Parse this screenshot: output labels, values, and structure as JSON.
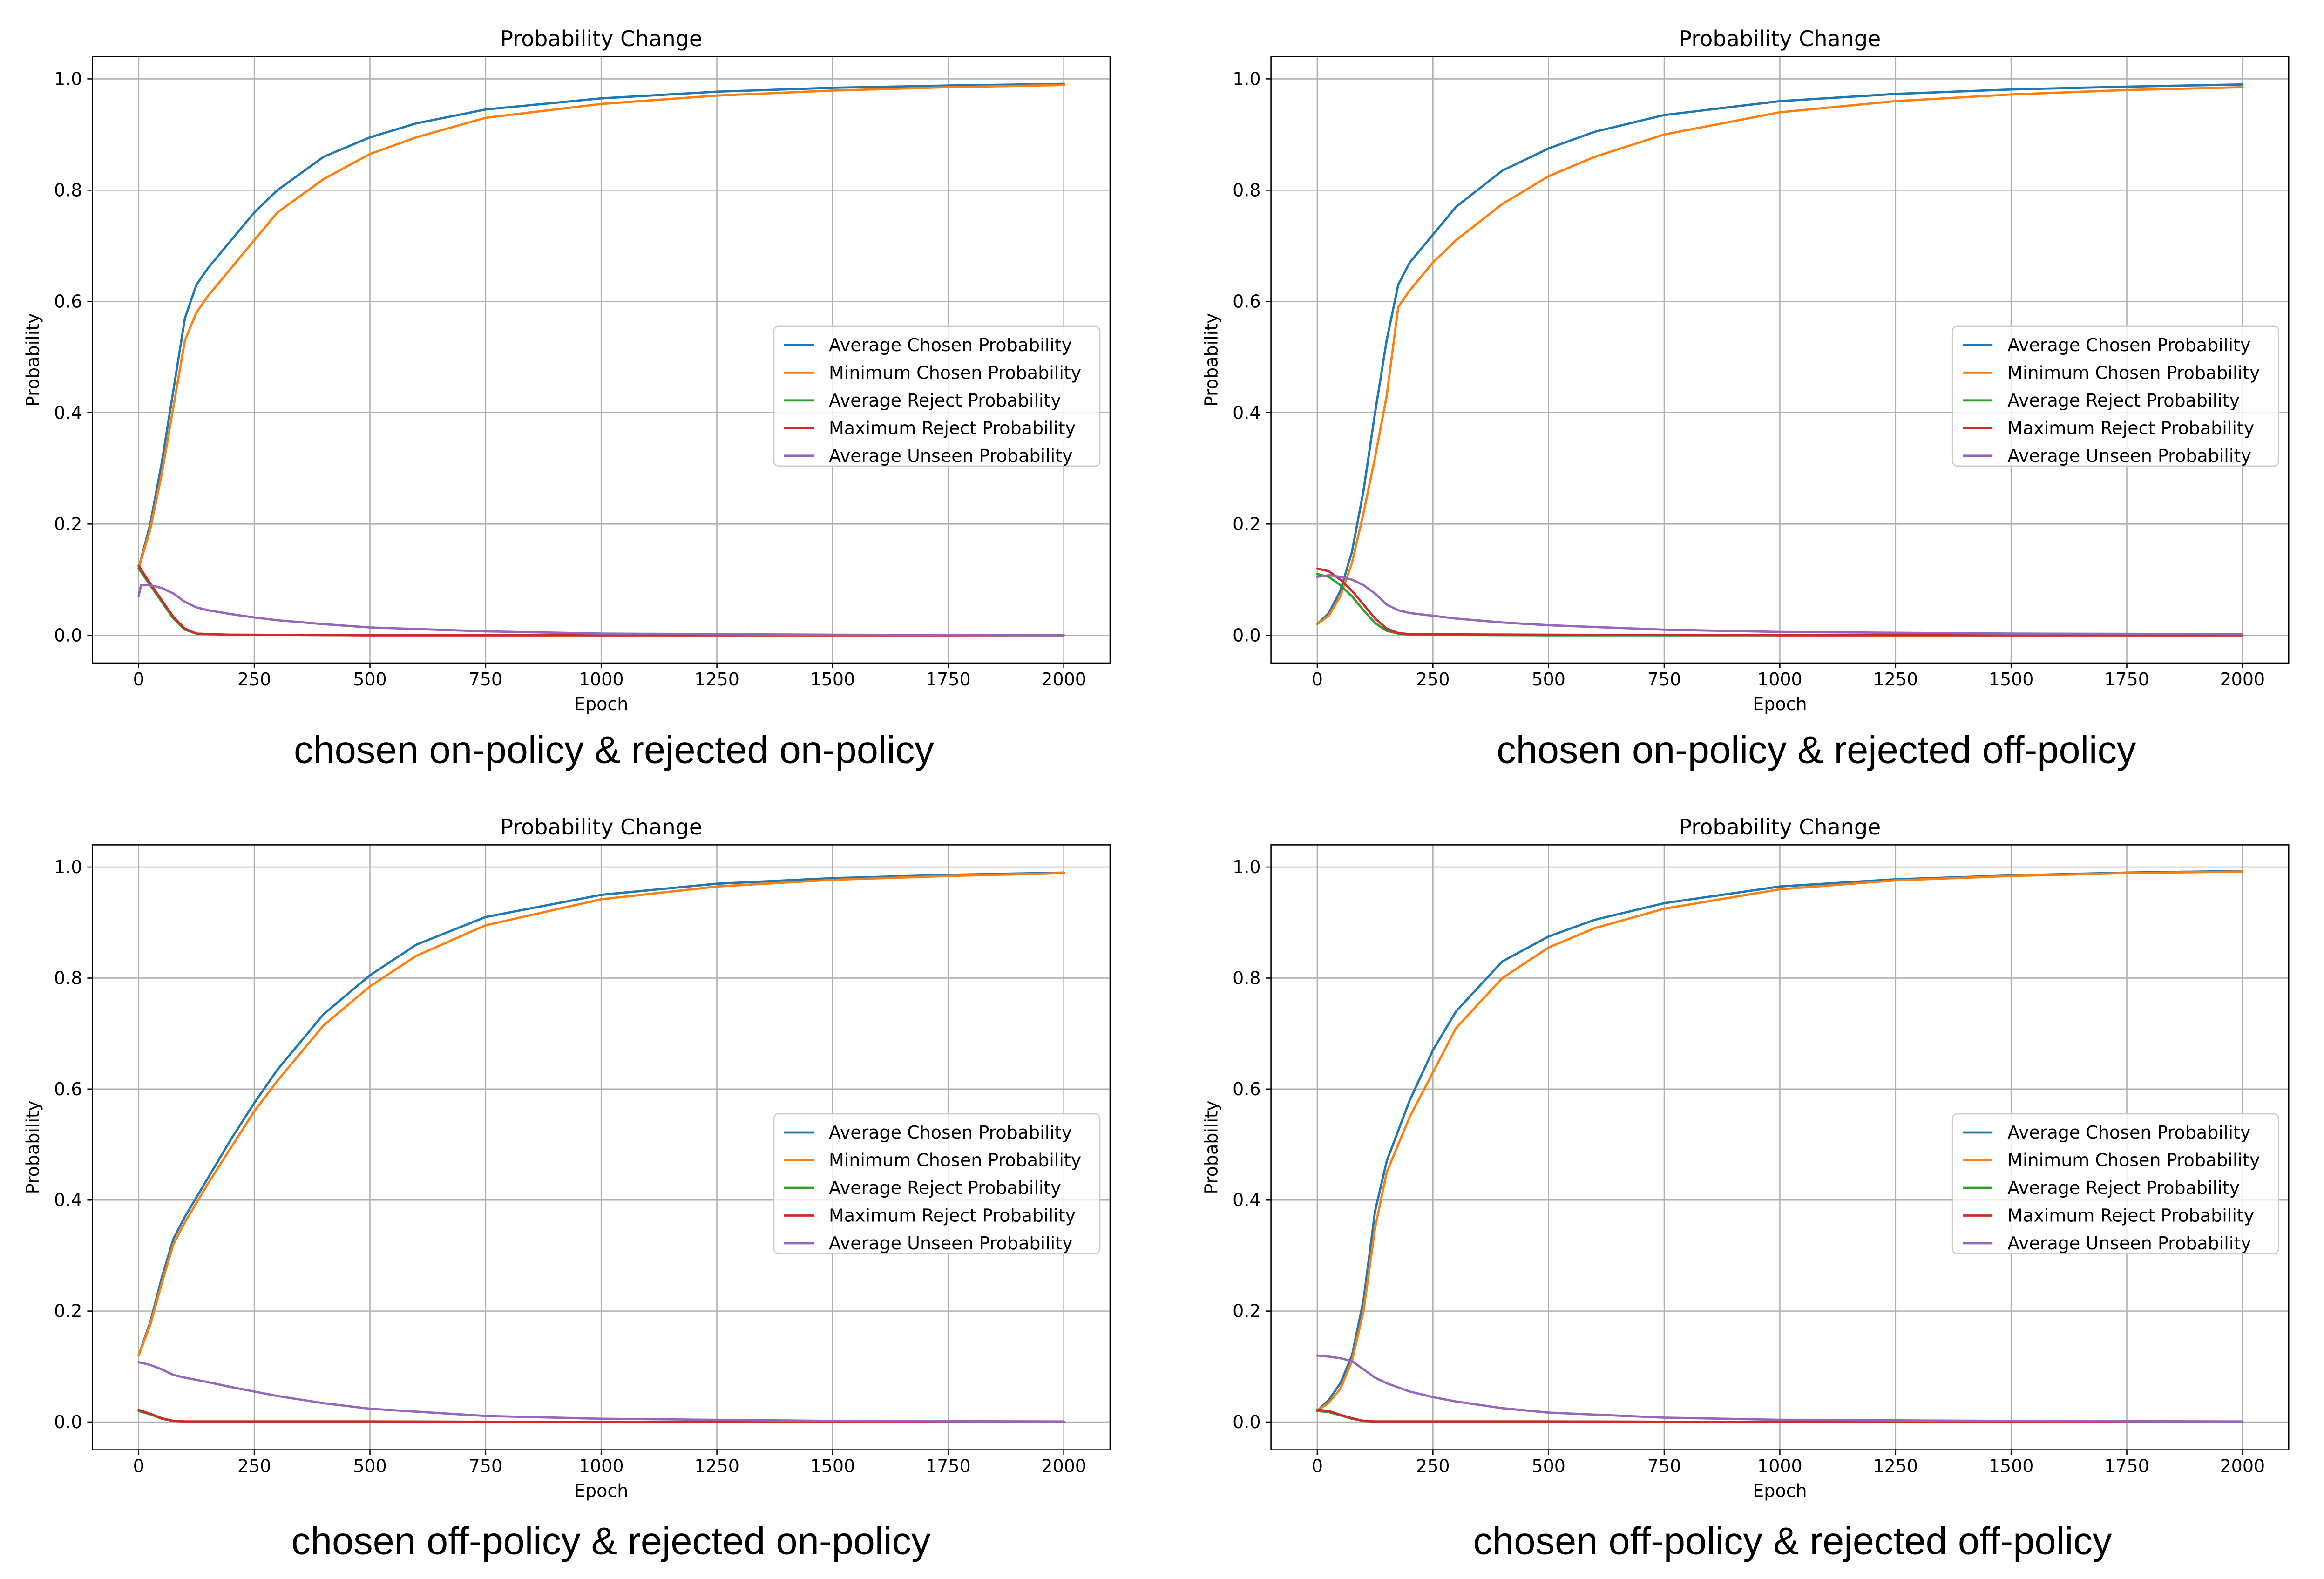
{
  "chart_data": [
    {
      "type": "line",
      "title": "Probability Change",
      "caption": "chosen on-policy & rejected on-policy",
      "xlabel": "Epoch",
      "ylabel": "Probability",
      "xlim": [
        -100,
        2100
      ],
      "ylim": [
        -0.05,
        1.04
      ],
      "xticks": [
        0,
        250,
        500,
        750,
        1000,
        1250,
        1500,
        1750,
        2000
      ],
      "yticks": [
        0.0,
        0.2,
        0.4,
        0.6,
        0.8,
        1.0
      ],
      "grid": true,
      "legend_position": "center-right",
      "series": [
        {
          "name": "Average Chosen Probability",
          "color": "#1f77b4",
          "x": [
            0,
            25,
            50,
            75,
            100,
            125,
            150,
            200,
            250,
            300,
            400,
            500,
            600,
            750,
            1000,
            1250,
            1500,
            1750,
            2000
          ],
          "y": [
            0.12,
            0.2,
            0.31,
            0.44,
            0.57,
            0.63,
            0.66,
            0.71,
            0.76,
            0.8,
            0.86,
            0.895,
            0.92,
            0.945,
            0.965,
            0.977,
            0.984,
            0.988,
            0.991
          ]
        },
        {
          "name": "Minimum Chosen Probability",
          "color": "#ff7f0e",
          "x": [
            0,
            25,
            50,
            75,
            100,
            125,
            150,
            200,
            250,
            300,
            400,
            500,
            600,
            750,
            1000,
            1250,
            1500,
            1750,
            2000
          ],
          "y": [
            0.12,
            0.19,
            0.29,
            0.41,
            0.53,
            0.58,
            0.61,
            0.66,
            0.71,
            0.76,
            0.82,
            0.865,
            0.895,
            0.93,
            0.955,
            0.97,
            0.979,
            0.985,
            0.989
          ]
        },
        {
          "name": "Average Reject Probability",
          "color": "#2ca02c",
          "x": [
            0,
            25,
            50,
            75,
            100,
            125,
            150,
            200,
            500,
            1000,
            2000
          ],
          "y": [
            0.12,
            0.09,
            0.06,
            0.03,
            0.01,
            0.003,
            0.002,
            0.001,
            0.0,
            0.0,
            0.0
          ]
        },
        {
          "name": "Maximum Reject Probability",
          "color": "#d62728",
          "x": [
            0,
            25,
            50,
            75,
            100,
            125,
            150,
            200,
            500,
            1000,
            2000
          ],
          "y": [
            0.125,
            0.093,
            0.063,
            0.033,
            0.012,
            0.003,
            0.002,
            0.001,
            0.0,
            0.0,
            0.0
          ]
        },
        {
          "name": "Average Unseen Probability",
          "color": "#9467bd",
          "x": [
            0,
            5,
            25,
            50,
            75,
            100,
            125,
            150,
            200,
            250,
            300,
            400,
            500,
            750,
            1000,
            1500,
            2000
          ],
          "y": [
            0.07,
            0.09,
            0.09,
            0.085,
            0.075,
            0.06,
            0.05,
            0.045,
            0.038,
            0.032,
            0.027,
            0.02,
            0.014,
            0.007,
            0.003,
            0.001,
            0.0
          ]
        }
      ]
    },
    {
      "type": "line",
      "title": "Probability Change",
      "caption": "chosen on-policy & rejected off-policy",
      "xlabel": "Epoch",
      "ylabel": "Probability",
      "xlim": [
        -100,
        2100
      ],
      "ylim": [
        -0.05,
        1.04
      ],
      "xticks": [
        0,
        250,
        500,
        750,
        1000,
        1250,
        1500,
        1750,
        2000
      ],
      "yticks": [
        0.0,
        0.2,
        0.4,
        0.6,
        0.8,
        1.0
      ],
      "grid": true,
      "legend_position": "center-right",
      "series": [
        {
          "name": "Average Chosen Probability",
          "color": "#1f77b4",
          "x": [
            0,
            25,
            50,
            75,
            100,
            125,
            150,
            175,
            200,
            250,
            300,
            400,
            500,
            600,
            750,
            1000,
            1250,
            1500,
            1750,
            2000
          ],
          "y": [
            0.02,
            0.04,
            0.08,
            0.15,
            0.26,
            0.4,
            0.53,
            0.63,
            0.67,
            0.72,
            0.77,
            0.835,
            0.875,
            0.905,
            0.935,
            0.96,
            0.973,
            0.981,
            0.986,
            0.99
          ]
        },
        {
          "name": "Minimum Chosen Probability",
          "color": "#ff7f0e",
          "x": [
            0,
            25,
            50,
            75,
            100,
            125,
            150,
            175,
            200,
            250,
            300,
            400,
            500,
            600,
            750,
            1000,
            1250,
            1500,
            1750,
            2000
          ],
          "y": [
            0.02,
            0.035,
            0.07,
            0.13,
            0.22,
            0.32,
            0.43,
            0.59,
            0.62,
            0.67,
            0.71,
            0.775,
            0.825,
            0.86,
            0.9,
            0.94,
            0.96,
            0.972,
            0.98,
            0.985
          ]
        },
        {
          "name": "Average Reject Probability",
          "color": "#2ca02c",
          "x": [
            0,
            25,
            50,
            75,
            100,
            125,
            150,
            175,
            200,
            500,
            1000,
            2000
          ],
          "y": [
            0.11,
            0.105,
            0.09,
            0.07,
            0.045,
            0.022,
            0.008,
            0.003,
            0.001,
            0.0,
            0.0,
            0.0
          ]
        },
        {
          "name": "Maximum Reject Probability",
          "color": "#d62728",
          "x": [
            0,
            25,
            50,
            75,
            100,
            125,
            150,
            175,
            200,
            500,
            1000,
            2000
          ],
          "y": [
            0.12,
            0.115,
            0.1,
            0.08,
            0.055,
            0.03,
            0.012,
            0.004,
            0.002,
            0.001,
            0.0,
            0.0
          ]
        },
        {
          "name": "Average Unseen Probability",
          "color": "#9467bd",
          "x": [
            0,
            25,
            50,
            75,
            100,
            125,
            150,
            175,
            200,
            250,
            300,
            400,
            500,
            750,
            1000,
            1500,
            2000
          ],
          "y": [
            0.105,
            0.108,
            0.105,
            0.1,
            0.09,
            0.075,
            0.055,
            0.045,
            0.04,
            0.035,
            0.03,
            0.023,
            0.018,
            0.01,
            0.006,
            0.003,
            0.002
          ]
        }
      ]
    },
    {
      "type": "line",
      "title": "Probability Change",
      "caption": "chosen off-policy & rejected on-policy",
      "xlabel": "Epoch",
      "ylabel": "Probability",
      "xlim": [
        -100,
        2100
      ],
      "ylim": [
        -0.05,
        1.04
      ],
      "xticks": [
        0,
        250,
        500,
        750,
        1000,
        1250,
        1500,
        1750,
        2000
      ],
      "yticks": [
        0.0,
        0.2,
        0.4,
        0.6,
        0.8,
        1.0
      ],
      "grid": true,
      "legend_position": "center-right",
      "series": [
        {
          "name": "Average Chosen Probability",
          "color": "#1f77b4",
          "x": [
            0,
            25,
            50,
            75,
            100,
            150,
            200,
            250,
            300,
            400,
            500,
            600,
            750,
            1000,
            1250,
            1500,
            1750,
            2000
          ],
          "y": [
            0.12,
            0.18,
            0.26,
            0.33,
            0.37,
            0.44,
            0.51,
            0.575,
            0.635,
            0.735,
            0.805,
            0.86,
            0.91,
            0.95,
            0.97,
            0.98,
            0.986,
            0.99
          ]
        },
        {
          "name": "Minimum Chosen Probability",
          "color": "#ff7f0e",
          "x": [
            0,
            25,
            50,
            75,
            100,
            150,
            200,
            250,
            300,
            400,
            500,
            600,
            750,
            1000,
            1250,
            1500,
            1750,
            2000
          ],
          "y": [
            0.12,
            0.175,
            0.25,
            0.32,
            0.36,
            0.43,
            0.495,
            0.56,
            0.615,
            0.715,
            0.785,
            0.84,
            0.895,
            0.942,
            0.965,
            0.977,
            0.984,
            0.989
          ]
        },
        {
          "name": "Average Reject Probability",
          "color": "#2ca02c",
          "x": [
            0,
            25,
            50,
            75,
            100,
            150,
            500,
            1000,
            2000
          ],
          "y": [
            0.02,
            0.014,
            0.006,
            0.002,
            0.001,
            0.001,
            0.001,
            0.0,
            0.0
          ]
        },
        {
          "name": "Maximum Reject Probability",
          "color": "#d62728",
          "x": [
            0,
            25,
            50,
            75,
            100,
            150,
            500,
            1000,
            2000
          ],
          "y": [
            0.022,
            0.015,
            0.007,
            0.002,
            0.001,
            0.001,
            0.001,
            0.0,
            0.0
          ]
        },
        {
          "name": "Average Unseen Probability",
          "color": "#9467bd",
          "x": [
            0,
            25,
            50,
            75,
            100,
            150,
            200,
            250,
            300,
            400,
            500,
            750,
            1000,
            1500,
            2000
          ],
          "y": [
            0.108,
            0.103,
            0.095,
            0.085,
            0.08,
            0.072,
            0.063,
            0.055,
            0.047,
            0.034,
            0.024,
            0.011,
            0.006,
            0.002,
            0.001
          ]
        }
      ]
    },
    {
      "type": "line",
      "title": "Probability Change",
      "caption": "chosen off-policy & rejected off-policy",
      "xlabel": "Epoch",
      "ylabel": "Probability",
      "xlim": [
        -100,
        2100
      ],
      "ylim": [
        -0.05,
        1.04
      ],
      "xticks": [
        0,
        250,
        500,
        750,
        1000,
        1250,
        1500,
        1750,
        2000
      ],
      "yticks": [
        0.0,
        0.2,
        0.4,
        0.6,
        0.8,
        1.0
      ],
      "grid": true,
      "legend_position": "center-right",
      "series": [
        {
          "name": "Average Chosen Probability",
          "color": "#1f77b4",
          "x": [
            0,
            25,
            50,
            75,
            100,
            125,
            150,
            200,
            250,
            300,
            400,
            500,
            600,
            750,
            1000,
            1250,
            1500,
            1750,
            2000
          ],
          "y": [
            0.02,
            0.04,
            0.07,
            0.12,
            0.22,
            0.38,
            0.47,
            0.58,
            0.67,
            0.74,
            0.83,
            0.875,
            0.905,
            0.935,
            0.965,
            0.978,
            0.985,
            0.99,
            0.993
          ]
        },
        {
          "name": "Minimum Chosen Probability",
          "color": "#ff7f0e",
          "x": [
            0,
            25,
            50,
            75,
            100,
            125,
            150,
            200,
            250,
            300,
            400,
            500,
            600,
            750,
            1000,
            1250,
            1500,
            1750,
            2000
          ],
          "y": [
            0.02,
            0.035,
            0.06,
            0.11,
            0.2,
            0.35,
            0.45,
            0.55,
            0.63,
            0.71,
            0.8,
            0.855,
            0.89,
            0.925,
            0.96,
            0.976,
            0.984,
            0.989,
            0.992
          ]
        },
        {
          "name": "Average Reject Probability",
          "color": "#2ca02c",
          "x": [
            0,
            25,
            50,
            75,
            100,
            125,
            150,
            500,
            1000,
            2000
          ],
          "y": [
            0.02,
            0.018,
            0.012,
            0.006,
            0.002,
            0.001,
            0.001,
            0.001,
            0.0,
            0.0
          ]
        },
        {
          "name": "Maximum Reject Probability",
          "color": "#d62728",
          "x": [
            0,
            25,
            50,
            75,
            100,
            125,
            150,
            500,
            1000,
            2000
          ],
          "y": [
            0.022,
            0.02,
            0.013,
            0.007,
            0.002,
            0.001,
            0.001,
            0.001,
            0.0,
            0.0
          ]
        },
        {
          "name": "Average Unseen Probability",
          "color": "#9467bd",
          "x": [
            0,
            25,
            50,
            75,
            100,
            125,
            150,
            200,
            250,
            300,
            400,
            500,
            750,
            1000,
            1500,
            2000
          ],
          "y": [
            0.12,
            0.118,
            0.115,
            0.11,
            0.095,
            0.08,
            0.07,
            0.055,
            0.045,
            0.037,
            0.025,
            0.017,
            0.008,
            0.004,
            0.002,
            0.001
          ]
        }
      ]
    }
  ]
}
